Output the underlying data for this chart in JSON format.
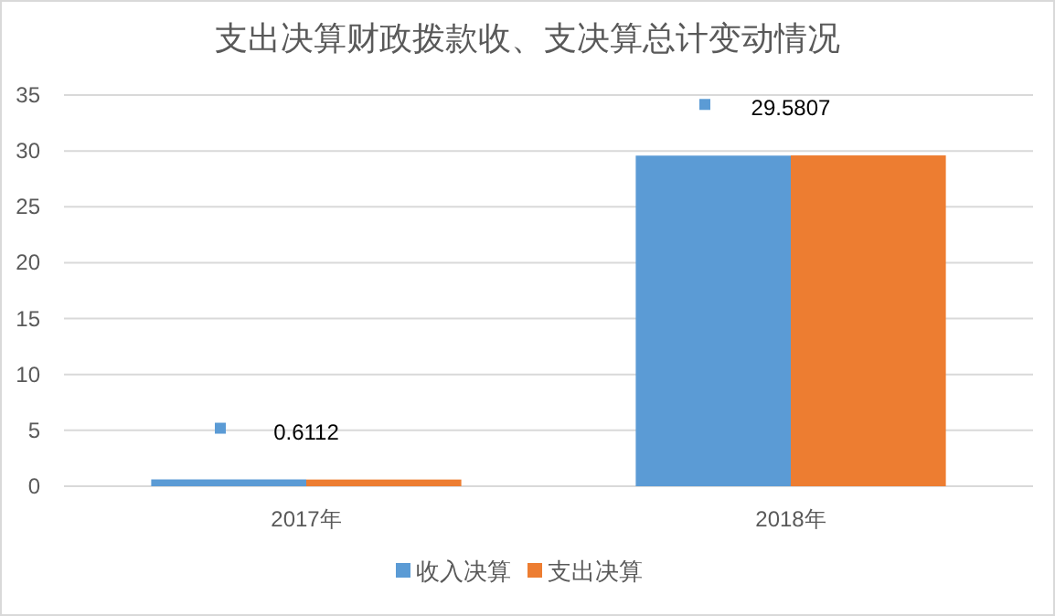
{
  "chart_data": {
    "type": "bar",
    "title": "支出决算财政拨款收、支决算总计变动情况",
    "categories": [
      "2017年",
      "2018年"
    ],
    "series": [
      {
        "name": "收入决算",
        "color": "#5b9bd5",
        "values": [
          0.6112,
          29.5807
        ],
        "value_labels": [
          "0.6112",
          "29.5807"
        ]
      },
      {
        "name": "支出决算",
        "color": "#ed7d31",
        "values": [
          0.6,
          29.6
        ]
      }
    ],
    "ylim": [
      0,
      35
    ],
    "yticks": [
      0,
      5,
      10,
      15,
      20,
      25,
      30,
      35
    ],
    "grid": "y",
    "legend": "bottom"
  }
}
